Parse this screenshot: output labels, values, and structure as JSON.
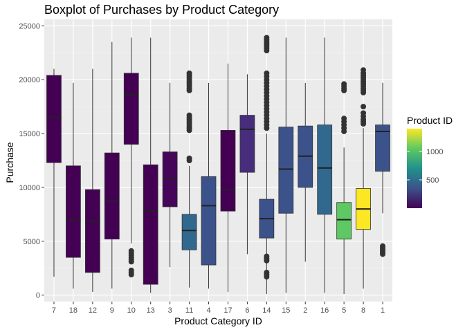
{
  "chart_data": {
    "type": "boxplot",
    "title": "Boxplot of Purchases by Product Category",
    "xlabel": "Product Category ID",
    "ylabel": "Purchase",
    "ylim": [
      -600,
      25600
    ],
    "y_ticks": [
      0,
      5000,
      10000,
      15000,
      20000,
      25000
    ],
    "grid": true,
    "legend": {
      "title": "Product ID",
      "type": "colorbar",
      "position": "right",
      "range": [
        1,
        1400
      ],
      "ticks": [
        500,
        1000
      ],
      "colors": [
        "#440154",
        "#3b528b",
        "#21918c",
        "#5ec962",
        "#fde725"
      ]
    },
    "categories": [
      "7",
      "18",
      "12",
      "9",
      "10",
      "13",
      "3",
      "11",
      "4",
      "17",
      "6",
      "14",
      "15",
      "2",
      "16",
      "5",
      "8",
      "1"
    ],
    "boxes": [
      {
        "whisker_low": 1700,
        "q1": 12300,
        "median": 16500,
        "q3": 20400,
        "whisker_high": 21000,
        "fill": "#440154",
        "outliers": []
      },
      {
        "whisker_low": 600,
        "q1": 3500,
        "median": 7000,
        "q3": 12000,
        "whisker_high": 19700,
        "fill": "#440154",
        "outliers": []
      },
      {
        "whisker_low": 300,
        "q1": 2100,
        "median": 6900,
        "q3": 9800,
        "whisker_high": 21000,
        "fill": "#440154",
        "outliers": []
      },
      {
        "whisker_low": 600,
        "q1": 5200,
        "median": 8700,
        "q3": 13200,
        "whisker_high": 23500,
        "fill": "#440154",
        "outliers": []
      },
      {
        "whisker_low": 4800,
        "q1": 14000,
        "median": 18600,
        "q3": 20600,
        "whisker_high": 23900,
        "fill": "#440154",
        "outliers": [
          1900,
          2100,
          2300,
          3100,
          3300,
          3500,
          3700,
          3900,
          4100
        ]
      },
      {
        "whisker_low": 200,
        "q1": 1000,
        "median": 7800,
        "q3": 12100,
        "whisker_high": 23900,
        "fill": "#440154",
        "outliers": []
      },
      {
        "whisker_low": 2600,
        "q1": 8200,
        "median": 10800,
        "q3": 13300,
        "whisker_high": 19700,
        "fill": "#450559",
        "outliers": []
      },
      {
        "whisker_low": 700,
        "q1": 4200,
        "median": 6000,
        "q3": 7500,
        "whisker_high": 12000,
        "fill": "#31688e",
        "outliers": [
          12500,
          12700,
          15300,
          15500,
          15700,
          15900,
          16100,
          16300,
          16500,
          16700,
          19000,
          19200,
          19400,
          19600,
          19800,
          20000,
          20200,
          20400,
          20600
        ]
      },
      {
        "whisker_low": 600,
        "q1": 2800,
        "median": 8300,
        "q3": 11000,
        "whisker_high": 19700,
        "fill": "#3b528b",
        "outliers": []
      },
      {
        "whisker_low": 300,
        "q1": 7800,
        "median": 9800,
        "q3": 15300,
        "whisker_high": 21500,
        "fill": "#440154",
        "outliers": []
      },
      {
        "whisker_low": 3800,
        "q1": 11400,
        "median": 15400,
        "q3": 16700,
        "whisker_high": 20500,
        "fill": "#472d7b",
        "outliers": []
      },
      {
        "whisker_low": 100,
        "q1": 5300,
        "median": 7100,
        "q3": 8900,
        "whisker_high": 15000,
        "fill": "#3b528b",
        "outliers": [
          1700,
          1900,
          2100,
          3200,
          3400,
          3600,
          15500,
          15800,
          16100,
          16400,
          16700,
          17000,
          17300,
          17600,
          17900,
          18200,
          18500,
          18800,
          19100,
          19400,
          19700,
          20000,
          20300,
          20600,
          22700,
          22900,
          23100,
          23300,
          23500,
          23700,
          23900
        ]
      },
      {
        "whisker_low": 200,
        "q1": 7600,
        "median": 11700,
        "q3": 15600,
        "whisker_high": 23900,
        "fill": "#3b528b",
        "outliers": []
      },
      {
        "whisker_low": 3100,
        "q1": 10000,
        "median": 12900,
        "q3": 15700,
        "whisker_high": 19700,
        "fill": "#3b528b",
        "outliers": []
      },
      {
        "whisker_low": 200,
        "q1": 7500,
        "median": 11800,
        "q3": 15800,
        "whisker_high": 23900,
        "fill": "#31688e",
        "outliers": []
      },
      {
        "whisker_low": 100,
        "q1": 5200,
        "median": 7000,
        "q3": 8600,
        "whisker_high": 13700,
        "fill": "#5ec962",
        "outliers": [
          15200,
          15500,
          15800,
          16100,
          16400,
          19000,
          19200,
          19400,
          19600
        ]
      },
      {
        "whisker_low": 600,
        "q1": 6100,
        "median": 8000,
        "q3": 9900,
        "whisker_high": 15500,
        "fill": "#fde725",
        "outliers": [
          15900,
          16100,
          16300,
          16600,
          16900,
          17500,
          18800,
          19000,
          19200,
          19400,
          19600,
          19800,
          20000,
          20200,
          20400,
          20600,
          20900
        ]
      },
      {
        "whisker_low": 7600,
        "q1": 11500,
        "median": 15200,
        "q3": 15800,
        "whisker_high": 19700,
        "fill": "#3b528b",
        "outliers": [
          3800,
          3950,
          4100,
          4250,
          4400,
          4550
        ]
      }
    ]
  }
}
